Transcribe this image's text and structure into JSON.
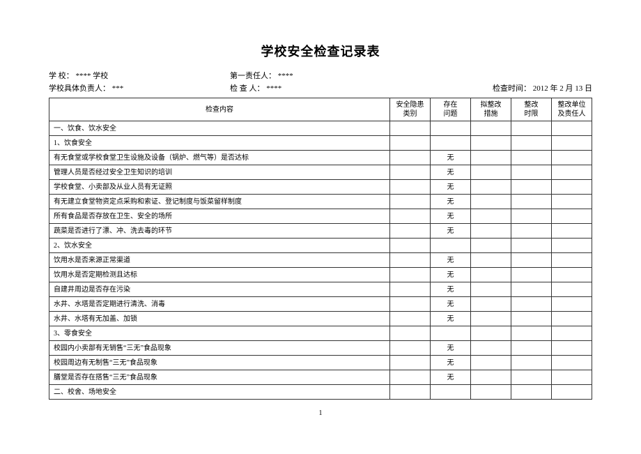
{
  "title": "学校安全检查记录表",
  "meta": {
    "school_label": "学        校：",
    "school_value": "**** 学校",
    "first_resp_label": "第一责任人：",
    "first_resp_value": "****",
    "school_specific_label": "学校具体负责人：",
    "school_specific_value": "***",
    "inspector_label": "检    查    人：",
    "inspector_value": "****",
    "date_label": "检查时间：",
    "date_value": "2012 年 2 月 13 日"
  },
  "headers": {
    "content": "检查内容",
    "hazard_type": "安全隐患\n类别",
    "problem": "存在\n问题",
    "measure": "拟整改\n措施",
    "deadline": "整改\n时限",
    "responsible": "整改单位\n及责任人"
  },
  "rows": [
    {
      "content": "一、饮食、饮水安全",
      "a": "",
      "b": "",
      "c": "",
      "d": "",
      "e": ""
    },
    {
      "content": "1、饮食安全",
      "a": "",
      "b": "",
      "c": "",
      "d": "",
      "e": ""
    },
    {
      "content": "有无食堂或学校食堂卫生设施及设备（锅炉、燃气等）是否达标",
      "a": "",
      "b": "无",
      "c": "",
      "d": "",
      "e": ""
    },
    {
      "content": "管理人员是否经过安全卫生知识的培训",
      "a": "",
      "b": "无",
      "c": "",
      "d": "",
      "e": ""
    },
    {
      "content": "学校食堂、小卖部及从业人员有无证照",
      "a": "",
      "b": "无",
      "c": "",
      "d": "",
      "e": ""
    },
    {
      "content": "有无建立食堂物资定点采购和索证、登记制度与饭菜留样制度",
      "a": "",
      "b": "无",
      "c": "",
      "d": "",
      "e": ""
    },
    {
      "content": "所有食品是否存放在卫生、安全的场所",
      "a": "",
      "b": "无",
      "c": "",
      "d": "",
      "e": ""
    },
    {
      "content": "蔬菜是否进行了漂、冲、洗去毒的环节",
      "a": "",
      "b": "无",
      "c": "",
      "d": "",
      "e": ""
    },
    {
      "content": "2、饮水安全",
      "a": "",
      "b": "",
      "c": "",
      "d": "",
      "e": ""
    },
    {
      "content": "饮用水是否来源正常渠道",
      "a": "",
      "b": "无",
      "c": "",
      "d": "",
      "e": ""
    },
    {
      "content": "饮用水是否定期检测且达标",
      "a": "",
      "b": "无",
      "c": "",
      "d": "",
      "e": ""
    },
    {
      "content": "自建井周边是否存在污染",
      "a": "",
      "b": "无",
      "c": "",
      "d": "",
      "e": ""
    },
    {
      "content": "水井、水塔是否定期进行清洗、消毒",
      "a": "",
      "b": "无",
      "c": "",
      "d": "",
      "e": ""
    },
    {
      "content": "水井、水塔有无加盖、加锁",
      "a": "",
      "b": "无",
      "c": "",
      "d": "",
      "e": ""
    },
    {
      "content": "3、零食安全",
      "a": "",
      "b": "",
      "c": "",
      "d": "",
      "e": ""
    },
    {
      "content": "校园内小卖部有无销售“三无”食品现象",
      "a": "",
      "b": "无",
      "c": "",
      "d": "",
      "e": ""
    },
    {
      "content": "校园周边有无制售“三无”食品现象",
      "a": "",
      "b": "无",
      "c": "",
      "d": "",
      "e": ""
    },
    {
      "content": "膳堂是否存在搭售“三无”食品现象",
      "a": "",
      "b": "无",
      "c": "",
      "d": "",
      "e": ""
    },
    {
      "content": "二、校舍、场地安全",
      "a": "",
      "b": "",
      "c": "",
      "d": "",
      "e": ""
    }
  ],
  "page_number": "1"
}
